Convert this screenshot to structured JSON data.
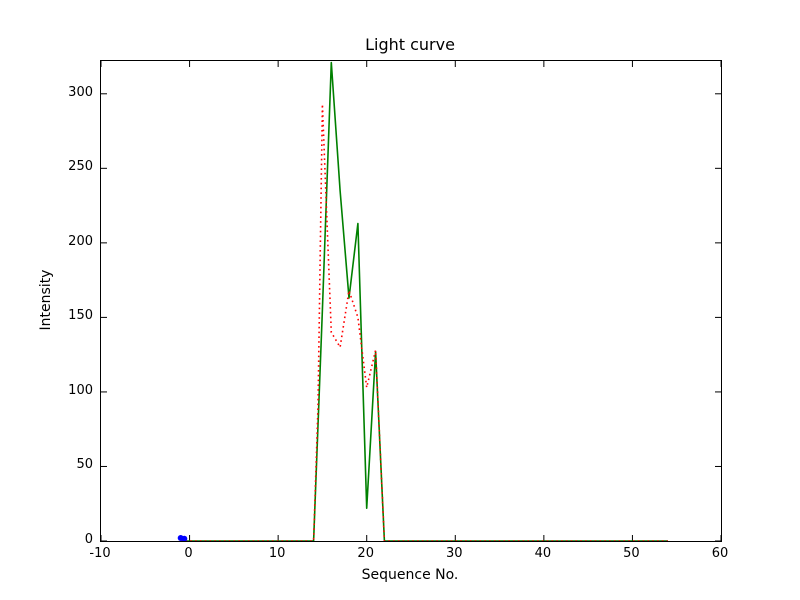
{
  "chart_data": {
    "type": "line",
    "title": "Light curve",
    "xlabel": "Sequence No.",
    "ylabel": "Intensity",
    "xlim": [
      -10,
      60
    ],
    "ylim": [
      0,
      322
    ],
    "xticks": [
      -10,
      0,
      10,
      20,
      30,
      40,
      50,
      60
    ],
    "yticks": [
      0,
      50,
      100,
      150,
      200,
      250,
      300
    ],
    "grid": false,
    "legend_position": "none",
    "colors": {
      "series_green": "#008000",
      "series_red": "#ff0000",
      "marker_blue": "#0000ff",
      "axis": "#000000",
      "background": "#ffffff"
    },
    "series": [
      {
        "name": "green-solid",
        "color": "#008000",
        "style": "solid",
        "points": [
          [
            -1,
            0
          ],
          [
            13,
            0
          ],
          [
            14,
            0
          ],
          [
            15,
            155
          ],
          [
            16,
            321
          ],
          [
            17,
            235
          ],
          [
            18,
            163
          ],
          [
            19,
            213
          ],
          [
            20,
            22
          ],
          [
            21,
            127
          ],
          [
            22,
            0
          ],
          [
            30,
            0
          ],
          [
            40,
            0
          ],
          [
            50,
            0
          ],
          [
            54,
            0
          ]
        ]
      },
      {
        "name": "red-dotted",
        "color": "#ff0000",
        "style": "dotted",
        "points": [
          [
            -1,
            0
          ],
          [
            13,
            0
          ],
          [
            14,
            0
          ],
          [
            14.5,
            90
          ],
          [
            15,
            293
          ],
          [
            16,
            140
          ],
          [
            17,
            130
          ],
          [
            18,
            168
          ],
          [
            19,
            150
          ],
          [
            20,
            103
          ],
          [
            21,
            128
          ],
          [
            22,
            0
          ],
          [
            30,
            0
          ],
          [
            40,
            0
          ],
          [
            50,
            0
          ],
          [
            54,
            0
          ]
        ]
      },
      {
        "name": "blue-marker",
        "color": "#0000ff",
        "style": "dot",
        "points": [
          [
            -1,
            2
          ],
          [
            -0.6,
            1.5
          ]
        ]
      }
    ]
  }
}
